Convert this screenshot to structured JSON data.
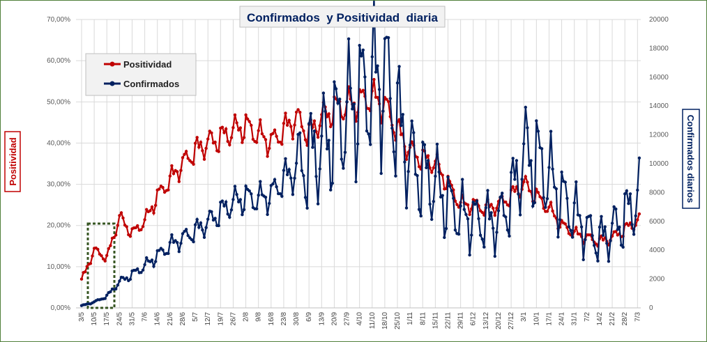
{
  "chart_data": {
    "type": "line",
    "title": "Confirmados  y Positividad  diaria",
    "ylabel": "Positividad",
    "y2label": "Confirmados diarios",
    "ylim": [
      0,
      70
    ],
    "y_ticks": [
      "0,00%",
      "10,00%",
      "20,00%",
      "30,00%",
      "40,00%",
      "50,00%",
      "60,00%",
      "70,00%"
    ],
    "y2lim": [
      0,
      20000
    ],
    "y2_ticks": [
      "0",
      "2000",
      "4000",
      "6000",
      "8000",
      "10000",
      "12000",
      "14000",
      "16000",
      "18000",
      "20000"
    ],
    "x_ticks": [
      "3/5",
      "10/5",
      "17/5",
      "24/5",
      "31/5",
      "7/6",
      "14/6",
      "21/6",
      "28/6",
      "5/7",
      "12/7",
      "19/7",
      "26/7",
      "2/8",
      "9/8",
      "16/8",
      "23/8",
      "30/8",
      "6/9",
      "13/9",
      "20/9",
      "27/9",
      "4/10",
      "11/10",
      "18/10",
      "25/10",
      "1/11",
      "8/11",
      "15/11",
      "22/11",
      "29/11",
      "6/12",
      "13/12",
      "20/12",
      "27/12",
      "3/1",
      "10/1",
      "17/1",
      "24/1",
      "31/1",
      "7/2",
      "14/2",
      "21/2",
      "28/2",
      "7/3"
    ],
    "grid": true,
    "legend_position": "top-left",
    "series": [
      {
        "name": "Positividad",
        "axis": "left",
        "color": "#c00000",
        "weekly_anchors": [
          6.5,
          14,
          12,
          22,
          18,
          21,
          27,
          31,
          35,
          38,
          40,
          41,
          43,
          44,
          42,
          40,
          43,
          46,
          42,
          46,
          48,
          49,
          50,
          51,
          49,
          43,
          38,
          36,
          35,
          30,
          25,
          25,
          24,
          25,
          27,
          30,
          27,
          24,
          20,
          18,
          17,
          16,
          17,
          19,
          21
        ]
      },
      {
        "name": "Confirmados",
        "axis": "right",
        "color": "#002060",
        "weekly_anchors": [
          150,
          400,
          800,
          1800,
          2300,
          2900,
          3600,
          4300,
          4800,
          5300,
          5900,
          6600,
          7300,
          7600,
          7500,
          7800,
          8900,
          9500,
          10200,
          11000,
          12200,
          13200,
          14500,
          15300,
          15800,
          12800,
          10200,
          9000,
          8500,
          7100,
          6400,
          6000,
          5900,
          5900,
          7500,
          10500,
          10100,
          9000,
          7500,
          6400,
          5300,
          4600,
          5300,
          6200,
          7600
        ]
      }
    ]
  }
}
